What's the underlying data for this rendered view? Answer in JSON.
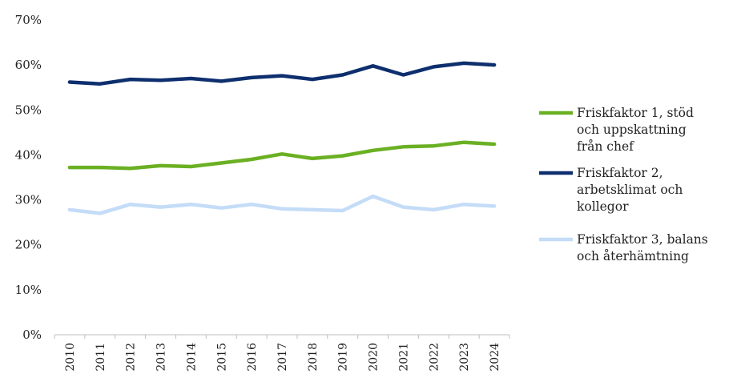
{
  "chart_data": {
    "type": "line",
    "title": "",
    "xlabel": "",
    "ylabel": "",
    "ylim": [
      0,
      70
    ],
    "yticks": [
      "0%",
      "10%",
      "20%",
      "30%",
      "40%",
      "50%",
      "60%",
      "70%"
    ],
    "grid": false,
    "legend_position": "right",
    "categories": [
      "2010",
      "2011",
      "2012",
      "2013",
      "2014",
      "2015",
      "2016",
      "2017",
      "2018",
      "2019",
      "2020",
      "2021",
      "2022",
      "2023",
      "2024"
    ],
    "series": [
      {
        "name": "Friskfaktor 1, stöd och uppskattning från chef",
        "legend_lines": [
          "Friskfaktor 1, stöd",
          "och uppskattning",
          "från chef"
        ],
        "color": "#6ab023",
        "values": [
          37.2,
          37.2,
          37.0,
          37.6,
          37.4,
          38.2,
          39.0,
          40.2,
          39.2,
          39.8,
          41.0,
          41.8,
          42.0,
          42.8,
          42.4
        ]
      },
      {
        "name": "Friskfaktor 2, arbetsklimat och kollegor",
        "legend_lines": [
          "Friskfaktor 2,",
          "arbetsklimat och",
          "kollegor"
        ],
        "color": "#0e2f6e",
        "values": [
          56.2,
          55.8,
          56.8,
          56.6,
          57.0,
          56.4,
          57.2,
          57.6,
          56.8,
          57.8,
          59.8,
          57.8,
          59.6,
          60.4,
          60.0
        ]
      },
      {
        "name": "Friskfaktor 3, balans och återhämtning",
        "legend_lines": [
          "Friskfaktor 3, balans",
          "och återhämtning"
        ],
        "color": "#c4dcf7",
        "values": [
          27.8,
          27.0,
          29.0,
          28.4,
          29.0,
          28.2,
          29.0,
          28.0,
          27.8,
          27.6,
          30.8,
          28.4,
          27.8,
          29.0,
          28.6
        ]
      }
    ]
  }
}
